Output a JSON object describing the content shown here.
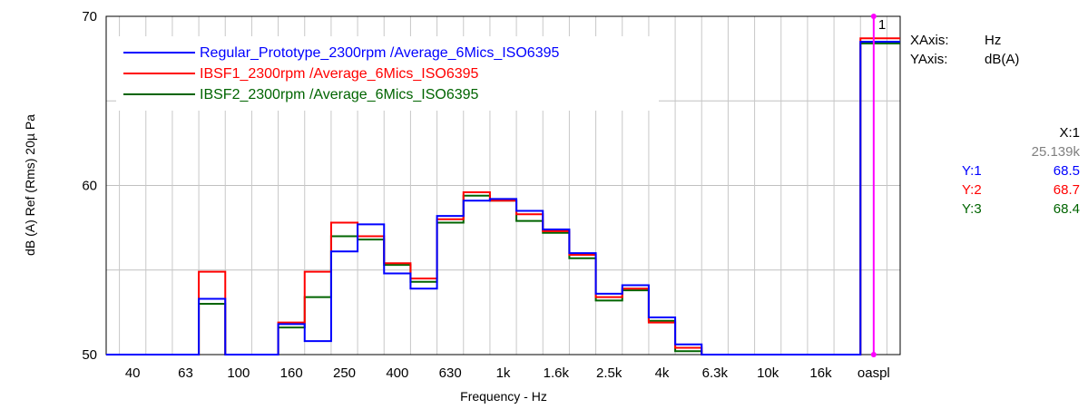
{
  "chart_data": {
    "type": "line",
    "subtype": "third-octave step plot",
    "ylabel": "dB (A) Ref (Rms) 20µ Pa",
    "xlabel": "Frequency - Hz",
    "ylim": [
      50,
      70
    ],
    "yticks": [
      50,
      60,
      70
    ],
    "grid": true,
    "legend_position": "top-left",
    "x_tick_labels": [
      "40",
      "63",
      "100",
      "160",
      "250",
      "400",
      "630",
      "1k",
      "1.6k",
      "2.5k",
      "4k",
      "6.3k",
      "10k",
      "16k",
      "oaspl"
    ],
    "categories": [
      "40",
      "50",
      "63",
      "80",
      "100",
      "125",
      "160",
      "200",
      "250",
      "315",
      "400",
      "500",
      "630",
      "800",
      "1k",
      "1.25k",
      "1.6k",
      "2k",
      "2.5k",
      "3.15k",
      "4k",
      "5k",
      "6.3k",
      "8k",
      "10k",
      "12.5k",
      "16k",
      "20k",
      "oaspl"
    ],
    "series": [
      {
        "name": "Regular_Prototype_2300rpm /Average_6Mics_ISO6395",
        "color": "#0000ff",
        "values": [
          50,
          50,
          50,
          53.3,
          50,
          50,
          51.8,
          50.8,
          56.1,
          57.7,
          54.8,
          53.9,
          58.2,
          59.1,
          59.2,
          58.5,
          57.4,
          56.0,
          53.6,
          54.1,
          52.2,
          50.6,
          50,
          50,
          50,
          50,
          50,
          50,
          68.5
        ]
      },
      {
        "name": "IBSF1_2300rpm /Average_6Mics_ISO6395",
        "color": "#ff0000",
        "values": [
          50,
          50,
          50,
          54.9,
          50,
          50,
          51.9,
          54.9,
          57.8,
          57.0,
          55.4,
          54.5,
          58.0,
          59.6,
          59.1,
          58.3,
          57.3,
          55.9,
          53.4,
          53.9,
          51.9,
          50.4,
          50,
          50,
          50,
          50,
          50,
          50,
          68.7
        ]
      },
      {
        "name": "IBSF2_2300rpm /Average_6Mics_ISO6395",
        "color": "#006400",
        "values": [
          50,
          50,
          50,
          53.0,
          50,
          50,
          51.6,
          53.4,
          57.0,
          56.8,
          55.3,
          54.3,
          57.8,
          59.4,
          59.1,
          57.9,
          57.2,
          55.7,
          53.2,
          53.8,
          52.0,
          50.2,
          50,
          50,
          50,
          50,
          50,
          50,
          68.4
        ]
      }
    ],
    "cursor": {
      "label": "1",
      "x_band": "oaspl",
      "color": "#ff00ff"
    }
  },
  "axis_info": {
    "x_key": "XAxis:",
    "x_value": "Hz",
    "y_key": "YAxis:",
    "y_value": "dB(A)"
  },
  "cursor_info": {
    "x_label": "X:1",
    "x_value": "25.139k",
    "rows": [
      {
        "label": "Y:1",
        "value": "68.5",
        "color": "#0000ff"
      },
      {
        "label": "Y:2",
        "value": "68.7",
        "color": "#ff0000"
      },
      {
        "label": "Y:3",
        "value": "68.4",
        "color": "#006400"
      }
    ]
  }
}
